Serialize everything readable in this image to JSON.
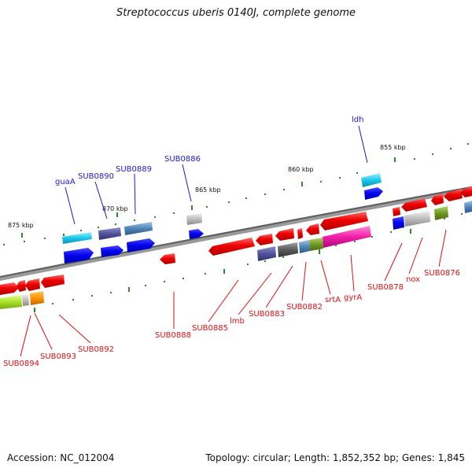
{
  "title": "Streptococcus uberis 0140J, complete genome",
  "footer": {
    "accession": "Accession: NC_012004",
    "stats": "Topology: circular; Length: 1,852,352 bp; Genes: 1,845"
  },
  "ticks": [
    "875 kbp",
    "870 kbp",
    "865 kbp",
    "860 kbp",
    "855 kbp"
  ],
  "gene_labels_top": [
    "guaA",
    "SUB0890",
    "SUB0889",
    "SUB0886",
    "ldh"
  ],
  "gene_labels_bottom": [
    "SUB0894",
    "SUB0893",
    "SUB0892",
    "SUB0888",
    "SUB0885",
    "lmb",
    "SUB0883",
    "SUB0882",
    "srtA",
    "gyrA",
    "SUB0878",
    "nox",
    "SUB0876"
  ],
  "colors": {
    "backbone": "#808080",
    "tick": "#2a8a2a",
    "label_top": "#1a1ad0",
    "label_bottom": "#dd1111"
  }
}
